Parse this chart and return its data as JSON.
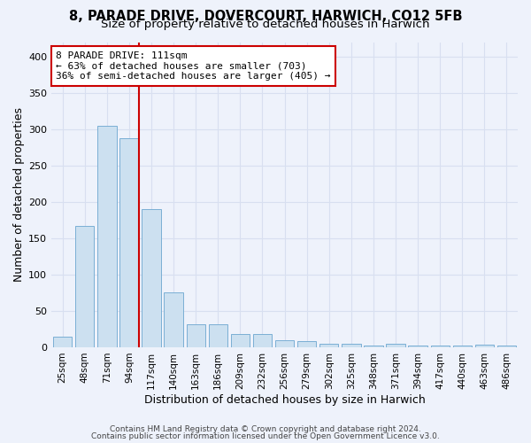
{
  "title_line1": "8, PARADE DRIVE, DOVERCOURT, HARWICH, CO12 5FB",
  "title_line2": "Size of property relative to detached houses in Harwich",
  "xlabel": "Distribution of detached houses by size in Harwich",
  "ylabel": "Number of detached properties",
  "categories": [
    "25sqm",
    "48sqm",
    "71sqm",
    "94sqm",
    "117sqm",
    "140sqm",
    "163sqm",
    "186sqm",
    "209sqm",
    "232sqm",
    "256sqm",
    "279sqm",
    "302sqm",
    "325sqm",
    "348sqm",
    "371sqm",
    "394sqm",
    "417sqm",
    "440sqm",
    "463sqm",
    "486sqm"
  ],
  "values": [
    15,
    167,
    305,
    288,
    190,
    75,
    32,
    32,
    18,
    18,
    10,
    8,
    5,
    5,
    2,
    5,
    2,
    2,
    2,
    3,
    2
  ],
  "bar_color": "#cce0f0",
  "bar_edge_color": "#7aafd4",
  "background_color": "#eef2fb",
  "grid_color": "#d8dff0",
  "annotation_line1": "8 PARADE DRIVE: 111sqm",
  "annotation_line2": "← 63% of detached houses are smaller (703)",
  "annotation_line3": "36% of semi-detached houses are larger (405) →",
  "annotation_box_color": "#ffffff",
  "annotation_box_edge_color": "#cc0000",
  "vline_color": "#cc0000",
  "ylim": [
    0,
    420
  ],
  "yticks": [
    0,
    50,
    100,
    150,
    200,
    250,
    300,
    350,
    400
  ],
  "footer_line1": "Contains HM Land Registry data © Crown copyright and database right 2024.",
  "footer_line2": "Contains public sector information licensed under the Open Government Licence v3.0.",
  "title_fontsize": 10.5,
  "subtitle_fontsize": 9.5,
  "axis_label_fontsize": 9,
  "tick_fontsize": 7.5,
  "annotation_fontsize": 8,
  "footer_fontsize": 6.5
}
